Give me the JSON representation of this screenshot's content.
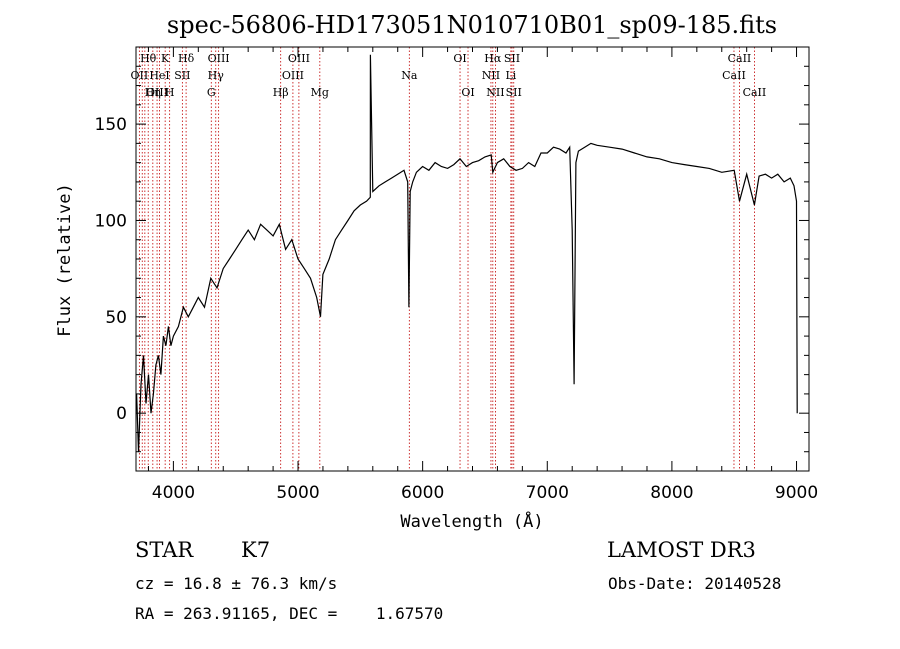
{
  "chart_data": {
    "type": "line",
    "title": "spec-56806-HD173051N010710B01_sp09-185.fits",
    "xlabel": "Wavelength (Å)",
    "ylabel": "Flux (relative)",
    "xlim": [
      3700,
      9100
    ],
    "ylim": [
      -30,
      190
    ],
    "x_ticks": [
      4000,
      5000,
      6000,
      7000,
      8000,
      9000
    ],
    "y_ticks": [
      0,
      50,
      100,
      150
    ],
    "grid": false,
    "series": [
      {
        "x": [
          3705,
          3720,
          3740,
          3760,
          3780,
          3800,
          3820,
          3840,
          3860,
          3880,
          3900,
          3920,
          3940,
          3960,
          3980,
          4000,
          4040,
          4080,
          4120,
          4160,
          4200,
          4250,
          4300,
          4350,
          4400,
          4450,
          4500,
          4550,
          4600,
          4650,
          4700,
          4750,
          4800,
          4850,
          4900,
          4950,
          5000,
          5050,
          5100,
          5150,
          5180,
          5200,
          5250,
          5300,
          5350,
          5400,
          5450,
          5500,
          5550,
          5580,
          5581,
          5600,
          5650,
          5700,
          5750,
          5800,
          5850,
          5880,
          5890,
          5900,
          5920,
          5950,
          6000,
          6050,
          6100,
          6150,
          6200,
          6250,
          6300,
          6350,
          6400,
          6450,
          6500,
          6550,
          6563,
          6600,
          6650,
          6700,
          6750,
          6800,
          6850,
          6900,
          6950,
          7000,
          7050,
          7100,
          7150,
          7180,
          7200,
          7215,
          7230,
          7250,
          7300,
          7350,
          7400,
          7500,
          7600,
          7700,
          7800,
          7900,
          8000,
          8100,
          8200,
          8300,
          8400,
          8500,
          8542,
          8600,
          8662,
          8700,
          8750,
          8800,
          8850,
          8900,
          8950,
          8980,
          9000,
          9005
        ],
        "y": [
          10,
          -20,
          15,
          30,
          5,
          20,
          0,
          10,
          25,
          30,
          20,
          40,
          35,
          45,
          35,
          40,
          45,
          55,
          50,
          55,
          60,
          55,
          70,
          65,
          75,
          80,
          85,
          90,
          95,
          90,
          98,
          95,
          92,
          98,
          85,
          90,
          80,
          75,
          70,
          60,
          50,
          72,
          80,
          90,
          95,
          100,
          105,
          108,
          110,
          112,
          186,
          115,
          118,
          120,
          122,
          124,
          126,
          120,
          55,
          115,
          120,
          125,
          128,
          126,
          130,
          128,
          127,
          129,
          132,
          128,
          130,
          131,
          133,
          134,
          125,
          130,
          132,
          128,
          126,
          127,
          130,
          128,
          135,
          135,
          138,
          137,
          135,
          138,
          95,
          15,
          130,
          136,
          138,
          140,
          139,
          138,
          137,
          135,
          133,
          132,
          130,
          129,
          128,
          127,
          125,
          126,
          110,
          124,
          108,
          123,
          124,
          122,
          124,
          120,
          122,
          118,
          110,
          0
        ]
      }
    ],
    "line_labels": [
      {
        "name": "Hθ",
        "wl": 3798,
        "row": 0
      },
      {
        "name": "OII",
        "wl": 3727,
        "row": 1
      },
      {
        "name": "OIII",
        "wl": 3869,
        "row": 2
      },
      {
        "name": "K",
        "wl": 3934,
        "row": 0
      },
      {
        "name": "HeI",
        "wl": 3889,
        "row": 1
      },
      {
        "name": "Hη",
        "wl": 3835,
        "row": 2
      },
      {
        "name": "H",
        "wl": 3970,
        "row": 2
      },
      {
        "name": "Hδ",
        "wl": 4102,
        "row": 0
      },
      {
        "name": "SII",
        "wl": 4072,
        "row": 1
      },
      {
        "name": "OIII",
        "wl": 4363,
        "row": 0
      },
      {
        "name": "Hγ",
        "wl": 4340,
        "row": 1
      },
      {
        "name": "G",
        "wl": 4304,
        "row": 2
      },
      {
        "name": "OIII",
        "wl": 5007,
        "row": 0
      },
      {
        "name": "OIII",
        "wl": 4959,
        "row": 1
      },
      {
        "name": "Hβ",
        "wl": 4861,
        "row": 2
      },
      {
        "name": "Mg",
        "wl": 5175,
        "row": 2
      },
      {
        "name": "Na",
        "wl": 5893,
        "row": 1
      },
      {
        "name": "OI",
        "wl": 6300,
        "row": 0
      },
      {
        "name": "OI",
        "wl": 6364,
        "row": 2
      },
      {
        "name": "Hα",
        "wl": 6563,
        "row": 0
      },
      {
        "name": "NII",
        "wl": 6548,
        "row": 1
      },
      {
        "name": "NII",
        "wl": 6584,
        "row": 2
      },
      {
        "name": "SII",
        "wl": 6717,
        "row": 0
      },
      {
        "name": "Li",
        "wl": 6708,
        "row": 1
      },
      {
        "name": "SII",
        "wl": 6731,
        "row": 2
      },
      {
        "name": "CaII",
        "wl": 8542,
        "row": 0
      },
      {
        "name": "CaII",
        "wl": 8498,
        "row": 1
      },
      {
        "name": "CaII",
        "wl": 8662,
        "row": 2
      }
    ],
    "line_wavelengths": [
      3727,
      3750,
      3771,
      3798,
      3835,
      3869,
      3889,
      3934,
      3970,
      4072,
      4102,
      4304,
      4340,
      4363,
      4861,
      4959,
      5007,
      5175,
      5893,
      6300,
      6364,
      6548,
      6563,
      6584,
      6708,
      6717,
      6731,
      8498,
      8542,
      8662
    ],
    "line_color": "#c00000"
  },
  "info": {
    "star_label": "STAR",
    "spectral_type": "K7",
    "survey": "LAMOST DR3",
    "cz": "cz = 16.8 ± 76.3 km/s",
    "obs_date": "Obs-Date: 20140528",
    "coords": "RA = 263.91165, DEC =    1.67570"
  }
}
